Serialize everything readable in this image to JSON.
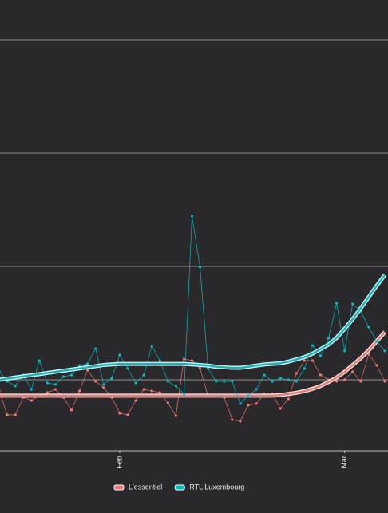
{
  "chart_data": {
    "type": "line",
    "categories": [
      null,
      null,
      null,
      null,
      null,
      null,
      null,
      null,
      null,
      null,
      null,
      null,
      null,
      null,
      null,
      "Feb",
      null,
      null,
      null,
      null,
      null,
      null,
      null,
      null,
      null,
      null,
      null,
      null,
      null,
      null,
      null,
      null,
      null,
      null,
      null,
      null,
      null,
      null,
      null,
      null,
      null,
      null,
      null,
      "Mar",
      null,
      null,
      null,
      null,
      null
    ],
    "series": [
      {
        "name": "L'essentiel",
        "color": "#f8766d",
        "values": [
          9.01,
          6.9,
          6.9,
          8.45,
          8.17,
          8.59,
          8.87,
          9.15,
          8.45,
          7.32,
          9.01,
          10.85,
          9.86,
          9.3,
          8.45,
          7.04,
          6.9,
          8.17,
          9.15,
          9.01,
          8.87,
          7.96,
          6.83,
          11.83,
          11.69,
          10.99,
          8.59,
          8.59,
          8.45,
          6.48,
          6.34,
          7.75,
          7.89,
          8.73,
          8.73,
          7.46,
          8.31,
          10.56,
          11.69,
          11.69,
          10.42,
          10.0,
          9.86,
          10.0,
          10.7,
          9.86,
          12.25,
          11.27,
          9.86
        ],
        "smooth": [
          8.6,
          8.6,
          8.6,
          8.6,
          8.6,
          8.6,
          8.6,
          8.6,
          8.6,
          8.6,
          8.6,
          8.6,
          8.6,
          8.6,
          8.6,
          8.6,
          8.6,
          8.6,
          8.6,
          8.6,
          8.6,
          8.6,
          8.6,
          8.6,
          8.6,
          8.6,
          8.6,
          8.6,
          8.6,
          8.6,
          8.6,
          8.6,
          8.6,
          8.6,
          8.6,
          8.65,
          8.75,
          8.85,
          9.0,
          9.2,
          9.45,
          9.8,
          10.2,
          10.7,
          11.3,
          11.9,
          12.6,
          13.4,
          14.2
        ]
      },
      {
        "name": "RTL Luxembourg",
        "color": "#00bfc4",
        "values": [
          10.77,
          9.86,
          9.44,
          10.42,
          9.15,
          11.69,
          9.72,
          9.58,
          10.28,
          10.42,
          11.27,
          11.41,
          12.75,
          9.58,
          10.14,
          12.18,
          10.99,
          9.72,
          10.42,
          12.96,
          11.69,
          9.86,
          9.44,
          8.73,
          24.44,
          19.93,
          10.99,
          9.86,
          9.86,
          9.86,
          7.89,
          8.59,
          9.15,
          10.42,
          9.86,
          10.14,
          10.0,
          9.86,
          10.99,
          13.03,
          12.11,
          13.66,
          16.76,
          12.54,
          16.69,
          16.06,
          14.65,
          13.38,
          12.54
        ],
        "smooth": [
          10.0,
          10.1,
          10.2,
          10.3,
          10.4,
          10.5,
          10.6,
          10.7,
          10.8,
          10.9,
          11.0,
          11.1,
          11.2,
          11.3,
          11.35,
          11.4,
          11.4,
          11.4,
          11.4,
          11.4,
          11.4,
          11.4,
          11.4,
          11.4,
          11.35,
          11.3,
          11.25,
          11.15,
          11.1,
          11.05,
          11.05,
          11.15,
          11.25,
          11.35,
          11.4,
          11.45,
          11.6,
          11.8,
          12.0,
          12.3,
          12.7,
          13.1,
          13.7,
          14.5,
          15.35,
          16.3,
          17.3,
          18.3,
          19.25
        ]
      }
    ],
    "ylim": [
      3.73,
      43.52
    ],
    "yticks": [
      10,
      20,
      30,
      40
    ],
    "grid": true,
    "legend": "bottom"
  }
}
